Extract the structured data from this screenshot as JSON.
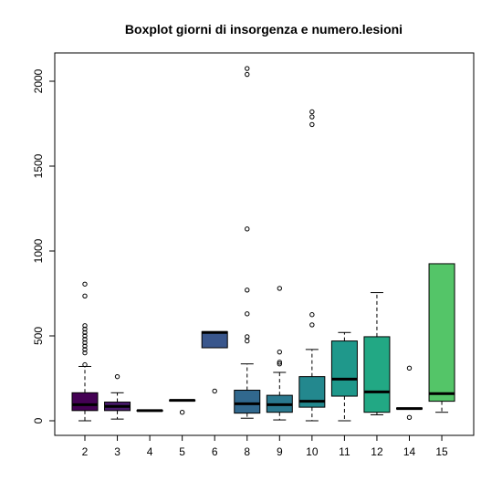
{
  "chart_data": {
    "type": "boxplot",
    "title": "Boxplot giorni di insorgenza e numero.lesioni",
    "xlabel": "",
    "ylabel": "",
    "ylim": [
      -80,
      2140
    ],
    "y_ticks": [
      0,
      500,
      1000,
      1500,
      2000
    ],
    "grid": false,
    "legend": "none",
    "categories": [
      "2",
      "3",
      "4",
      "5",
      "6",
      "8",
      "9",
      "10",
      "11",
      "12",
      "14",
      "15"
    ],
    "boxes": [
      {
        "category": "2",
        "color": "#440154",
        "whisker_low": 0,
        "q1": 60,
        "median": 95,
        "q3": 165,
        "whisker_high": 320,
        "outliers": [
          330,
          400,
          420,
          440,
          460,
          480,
          500,
          520,
          540,
          560,
          735,
          805
        ]
      },
      {
        "category": "3",
        "color": "#481A6C",
        "whisker_low": 10,
        "q1": 60,
        "median": 85,
        "q3": 110,
        "whisker_high": 165,
        "outliers": [
          260
        ]
      },
      {
        "category": "4",
        "color": "#472F7D",
        "whisker_low": 60,
        "q1": 60,
        "median": 60,
        "q3": 62,
        "whisker_high": 62,
        "outliers": []
      },
      {
        "category": "5",
        "color": "#414487",
        "whisker_low": 120,
        "q1": 120,
        "median": 120,
        "q3": 122,
        "whisker_high": 122,
        "outliers": [
          50
        ]
      },
      {
        "category": "6",
        "color": "#39568C",
        "whisker_low": 430,
        "q1": 430,
        "median": 520,
        "q3": 525,
        "whisker_high": 525,
        "outliers": [
          175
        ]
      },
      {
        "category": "8",
        "color": "#31688E",
        "whisker_low": 15,
        "q1": 45,
        "median": 100,
        "q3": 180,
        "whisker_high": 335,
        "outliers": [
          470,
          495,
          630,
          770,
          1130,
          2040,
          2075
        ]
      },
      {
        "category": "9",
        "color": "#2A788E",
        "whisker_low": 5,
        "q1": 50,
        "median": 95,
        "q3": 150,
        "whisker_high": 285,
        "outliers": [
          335,
          345,
          405,
          780
        ]
      },
      {
        "category": "10",
        "color": "#23888E",
        "whisker_low": 0,
        "q1": 80,
        "median": 115,
        "q3": 260,
        "whisker_high": 420,
        "outliers": [
          565,
          625,
          1745,
          1790,
          1820
        ]
      },
      {
        "category": "11",
        "color": "#1F988B",
        "whisker_low": 0,
        "q1": 145,
        "median": 245,
        "q3": 470,
        "whisker_high": 520,
        "outliers": []
      },
      {
        "category": "12",
        "color": "#22A884",
        "whisker_low": 35,
        "q1": 50,
        "median": 170,
        "q3": 495,
        "whisker_high": 755,
        "outliers": []
      },
      {
        "category": "14",
        "color": "#35B779",
        "whisker_low": 70,
        "q1": 70,
        "median": 72,
        "q3": 75,
        "whisker_high": 75,
        "outliers": [
          20,
          310
        ]
      },
      {
        "category": "15",
        "color": "#54C568",
        "whisker_low": 50,
        "q1": 115,
        "median": 160,
        "q3": 925,
        "whisker_high": 925,
        "outliers": []
      }
    ]
  }
}
